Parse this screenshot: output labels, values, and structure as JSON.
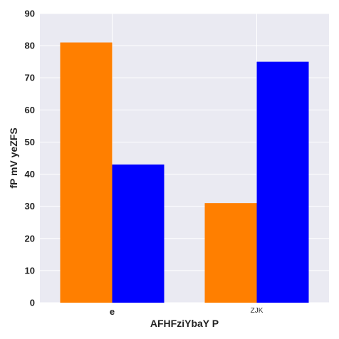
{
  "chart_data": {
    "type": "bar",
    "title": "",
    "xlabel": "AFHFziYbaY P",
    "ylabel": "fP mV yeZFS",
    "categories": [
      "e",
      "ZJK"
    ],
    "series": [
      {
        "values": [
          81,
          31
        ],
        "color": "#ff7f00"
      },
      {
        "values": [
          43,
          75
        ],
        "color": "#0000ff"
      }
    ],
    "ylim": [
      0,
      90
    ],
    "yticks": [
      0,
      10,
      20,
      30,
      40,
      50,
      60,
      70,
      80,
      90
    ],
    "grid": true,
    "legend": "none",
    "background": "#eaeaf2",
    "gridcolor": "#ffffff"
  }
}
